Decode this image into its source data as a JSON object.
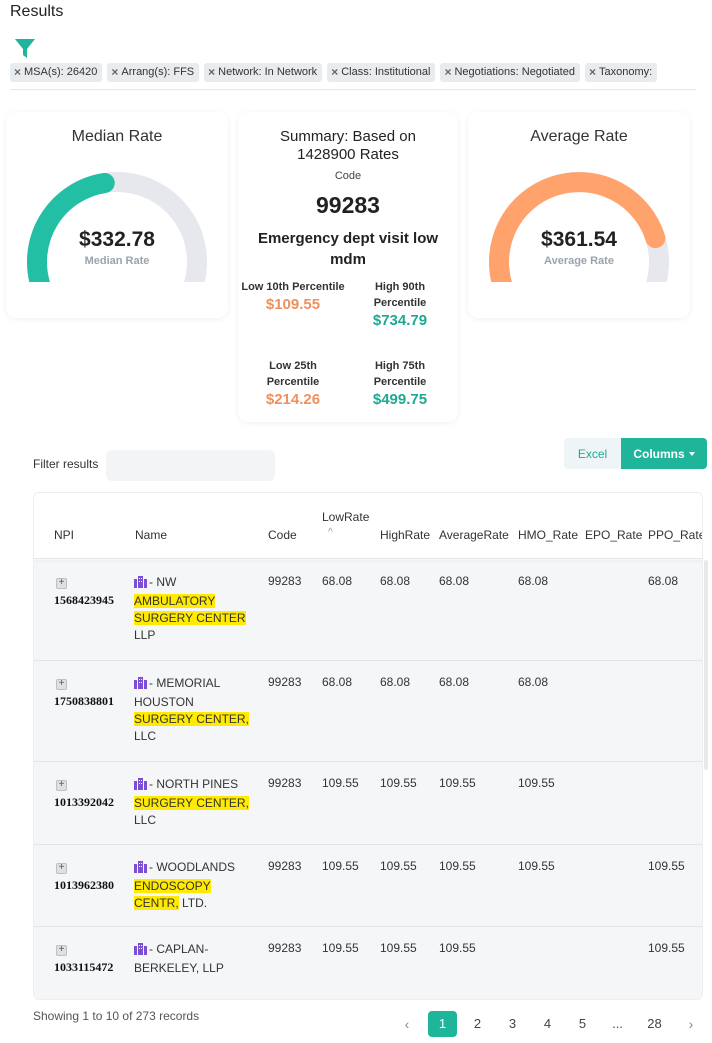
{
  "page": {
    "title": "Results"
  },
  "filter_chips": [
    {
      "label": "MSA(s): 26420"
    },
    {
      "label": "Arrang(s): FFS"
    },
    {
      "label": "Network: In Network"
    },
    {
      "label": "Class: Institutional"
    },
    {
      "label": "Negotiations: Negotiated"
    },
    {
      "label": "Taxonomy:"
    }
  ],
  "median_card": {
    "title": "Median Rate",
    "value": "$332.78",
    "sublabel": "Median Rate",
    "fill_fraction": 0.46,
    "color": "#22bfa4"
  },
  "average_card": {
    "title": "Average Rate",
    "value": "$361.54",
    "sublabel": "Average Rate",
    "fill_fraction": 0.83,
    "color": "#ffa26b"
  },
  "summary": {
    "title": "Summary: Based on 1428900 Rates",
    "code_label": "Code",
    "code": "99283",
    "description": "Emergency dept visit low mdm",
    "low10_label": "Low 10th Percentile",
    "low10_value": "$109.55",
    "high90_label": "High 90th Percentile",
    "high90_value": "$734.79",
    "low25_label": "Low 25th Percentile",
    "low25_value": "$214.26",
    "high75_label": "High 75th Percentile",
    "high75_value": "$499.75"
  },
  "toolbar": {
    "filter_label": "Filter results",
    "filter_value": "",
    "excel_label": "Excel",
    "columns_label": "Columns"
  },
  "table": {
    "columns": [
      "NPI",
      "Name",
      "Code",
      "LowRate",
      "HighRate",
      "AverageRate",
      "HMO_Rate",
      "EPO_Rate",
      "PPO_Rate"
    ],
    "rows": [
      {
        "npi": "1568423945",
        "name_lines": [
          [
            "- NW",
            ""
          ],
          [
            "AMBULATORY",
            "hl"
          ],
          [
            "SURGERY CENTER",
            "hl"
          ],
          [
            "LLP",
            ""
          ]
        ],
        "code": "99283",
        "low": "68.08",
        "high": "68.08",
        "avg": "68.08",
        "hmo": "68.08",
        "epo": "",
        "ppo": "68.08"
      },
      {
        "npi": "1750838801",
        "name_lines": [
          [
            "- MEMORIAL",
            ""
          ],
          [
            "HOUSTON",
            ""
          ],
          [
            "SURGERY CENTER,",
            "hl"
          ],
          [
            "LLC",
            ""
          ]
        ],
        "code": "99283",
        "low": "68.08",
        "high": "68.08",
        "avg": "68.08",
        "hmo": "68.08",
        "epo": "",
        "ppo": ""
      },
      {
        "npi": "1013392042",
        "name_lines": [
          [
            "- NORTH PINES",
            ""
          ],
          [
            "SURGERY CENTER,",
            "hl"
          ],
          [
            "LLC",
            ""
          ]
        ],
        "code": "99283",
        "low": "109.55",
        "high": "109.55",
        "avg": "109.55",
        "hmo": "109.55",
        "epo": "",
        "ppo": ""
      },
      {
        "npi": "1013962380",
        "name_lines": [
          [
            "- WOODLANDS",
            ""
          ],
          [
            "ENDOSCOPY",
            "hl"
          ],
          [
            "CENTR,|LTD.",
            "split"
          ]
        ],
        "code": "99283",
        "low": "109.55",
        "high": "109.55",
        "avg": "109.55",
        "hmo": "109.55",
        "epo": "",
        "ppo": "109.55"
      },
      {
        "npi": "1033115472",
        "name_lines": [
          [
            "- CAPLAN-",
            ""
          ],
          [
            "BERKELEY, LLP",
            ""
          ]
        ],
        "code": "99283",
        "low": "109.55",
        "high": "109.55",
        "avg": "109.55",
        "hmo": "",
        "epo": "",
        "ppo": "109.55"
      }
    ]
  },
  "footer": {
    "showing": "Showing 1 to 10 of 273 records",
    "pages": [
      "1",
      "2",
      "3",
      "4",
      "5",
      "...",
      "28"
    ],
    "active_page": "1"
  },
  "icons": {
    "filter": "funnel-icon",
    "org": "building-icon",
    "expand": "plus-square-icon",
    "sort": "chevron-up-icon"
  }
}
